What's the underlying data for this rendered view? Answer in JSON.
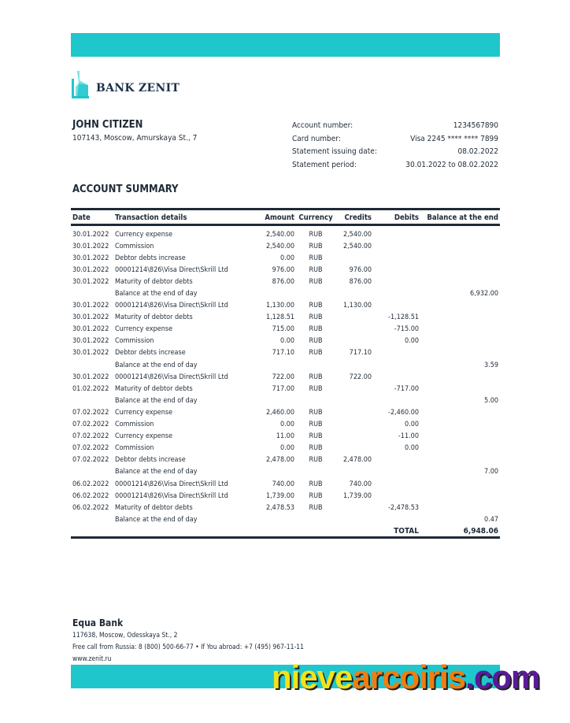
{
  "brand": {
    "name": "BANK ZENIT",
    "accent": "#1fc6cc"
  },
  "customer": {
    "name": "JOHN CITIZEN",
    "address": "107143, Moscow, Amurskaya St., 7"
  },
  "info": [
    {
      "label": "Account number:",
      "value": "1234567890"
    },
    {
      "label": "Card number:",
      "value": "Visa 2245 **** **** 7899"
    },
    {
      "label": "Statement issuing date:",
      "value": "08.02.2022"
    },
    {
      "label": "Statement period:",
      "value": "30.01.2022 to 08.02.2022"
    }
  ],
  "summary_title": "ACCOUNT SUMMARY",
  "table": {
    "headers": [
      "Date",
      "Transaction details",
      "Amount",
      "Currency",
      "Credits",
      "Debits",
      "Balance at the end"
    ],
    "rows": [
      [
        "30.01.2022",
        "Currency expense",
        "2,540.00",
        "RUB",
        "2,540.00",
        "",
        ""
      ],
      [
        "30.01.2022",
        "Commission",
        "2,540.00",
        "RUB",
        "2,540.00",
        "",
        ""
      ],
      [
        "30.01.2022",
        "Debtor debts increase",
        "0.00",
        "RUB",
        "",
        "",
        ""
      ],
      [
        "30.01.2022",
        "00001214\\826\\Visa Direct\\Skrill Ltd",
        "976.00",
        "RUB",
        "976.00",
        "",
        ""
      ],
      [
        "30.01.2022",
        "Maturity of debtor debts",
        "876.00",
        "RUB",
        "876.00",
        "",
        ""
      ],
      [
        "",
        "Balance at the end of day",
        "",
        "",
        "",
        "",
        "6,932.00"
      ],
      [
        "30.01.2022",
        "00001214\\826\\Visa Direct\\Skrill Ltd",
        "1,130.00",
        "RUB",
        "1,130.00",
        "",
        ""
      ],
      [
        "30.01.2022",
        "Maturity of debtor debts",
        "1,128.51",
        "RUB",
        "",
        "-1,128.51",
        ""
      ],
      [
        "30.01.2022",
        "Currency expense",
        "715.00",
        "RUB",
        "",
        "-715.00",
        ""
      ],
      [
        "30.01.2022",
        "Commission",
        "0.00",
        "RUB",
        "",
        "0.00",
        ""
      ],
      [
        "30.01.2022",
        "Debtor debts increase",
        "717.10",
        "RUB",
        "717.10",
        "",
        ""
      ],
      [
        "",
        "Balance at the end of day",
        "",
        "",
        "",
        "",
        "3.59"
      ],
      [
        "30.01.2022",
        "00001214\\826\\Visa Direct\\Skrill Ltd",
        "722.00",
        "RUB",
        "722.00",
        "",
        ""
      ],
      [
        "01.02.2022",
        "Maturity of debtor debts",
        "717.00",
        "RUB",
        "",
        "-717.00",
        ""
      ],
      [
        "",
        "Balance at the end of day",
        "",
        "",
        "",
        "",
        "5.00"
      ],
      [
        "07.02.2022",
        "Currency expense",
        "2,460.00",
        "RUB",
        "",
        "-2,460.00",
        ""
      ],
      [
        "07.02.2022",
        "Commission",
        "0.00",
        "RUB",
        "",
        "0.00",
        ""
      ],
      [
        "07.02.2022",
        "Currency expense",
        "11.00",
        "RUB",
        "",
        "-11.00",
        ""
      ],
      [
        "07.02.2022",
        "Commission",
        "0.00",
        "RUB",
        "",
        "0.00",
        ""
      ],
      [
        "07.02.2022",
        "Debtor debts increase",
        "2,478.00",
        "RUB",
        "2,478.00",
        "",
        ""
      ],
      [
        "",
        "Balance at the end of day",
        "",
        "",
        "",
        "",
        "7.00"
      ],
      [
        "06.02.2022",
        "00001214\\826\\Visa Direct\\Skrill Ltd",
        "740.00",
        "RUB",
        "740.00",
        "",
        ""
      ],
      [
        "06.02.2022",
        "00001214\\826\\Visa Direct\\Skrill Ltd",
        "1,739.00",
        "RUB",
        "1,739.00",
        "",
        ""
      ],
      [
        "06.02.2022",
        "Maturity of debtor debts",
        "2,478.53",
        "RUB",
        "",
        "-2,478.53",
        ""
      ],
      [
        "",
        "Balance at the end of day",
        "",
        "",
        "",
        "",
        "0.47"
      ]
    ],
    "total_label": "TOTAL",
    "total_value": "6,948.06"
  },
  "footer": {
    "bank": "Equa Bank",
    "address": "117638, Moscow, Odesskaya St., 2",
    "phones": "Free call from Russia: 8 (800) 500-66-77 • If You abroad: +7 (495) 967-11-11",
    "website": "www.zenit.ru"
  },
  "watermark": {
    "parts": [
      {
        "text": "nieve",
        "color": "#f2e21a"
      },
      {
        "text": "arcoiris",
        "color": "#f07d10"
      },
      {
        "text": ".com",
        "color": "#5a1a9a"
      }
    ]
  }
}
